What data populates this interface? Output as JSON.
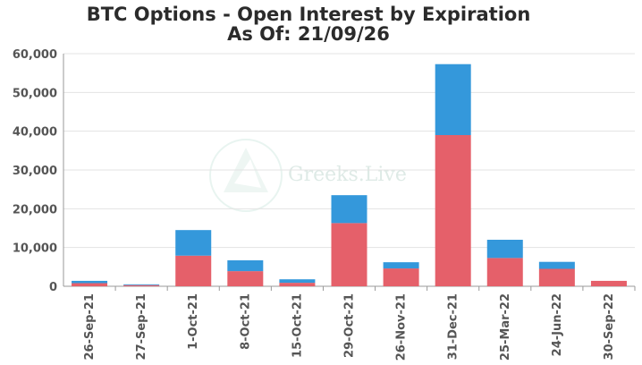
{
  "chart_data": {
    "type": "bar",
    "stacked": true,
    "title": "BTC Options - Open Interest by Expiration",
    "subtitle": "As Of: 21/09/26",
    "categories": [
      "26-Sep-21",
      "27-Sep-21",
      "1-Oct-21",
      "8-Oct-21",
      "15-Oct-21",
      "29-Oct-21",
      "26-Nov-21",
      "31-Dec-21",
      "25-Mar-22",
      "24-Jun-22",
      "30-Sep-22"
    ],
    "series": [
      {
        "values": [
          800,
          300,
          7900,
          3900,
          900,
          16300,
          4600,
          39000,
          7300,
          4500,
          1400
        ],
        "color": "#e5606a"
      },
      {
        "values": [
          600,
          200,
          6600,
          2800,
          900,
          7200,
          1600,
          18300,
          4700,
          1800,
          0
        ],
        "color": "#3498db"
      }
    ],
    "y_ticks": [
      "0",
      "10,000",
      "20,000",
      "30,000",
      "40,000",
      "50,000",
      "60,000"
    ],
    "ylim": [
      0,
      60000
    ],
    "grid": true,
    "watermark": "Greeks.Live"
  }
}
